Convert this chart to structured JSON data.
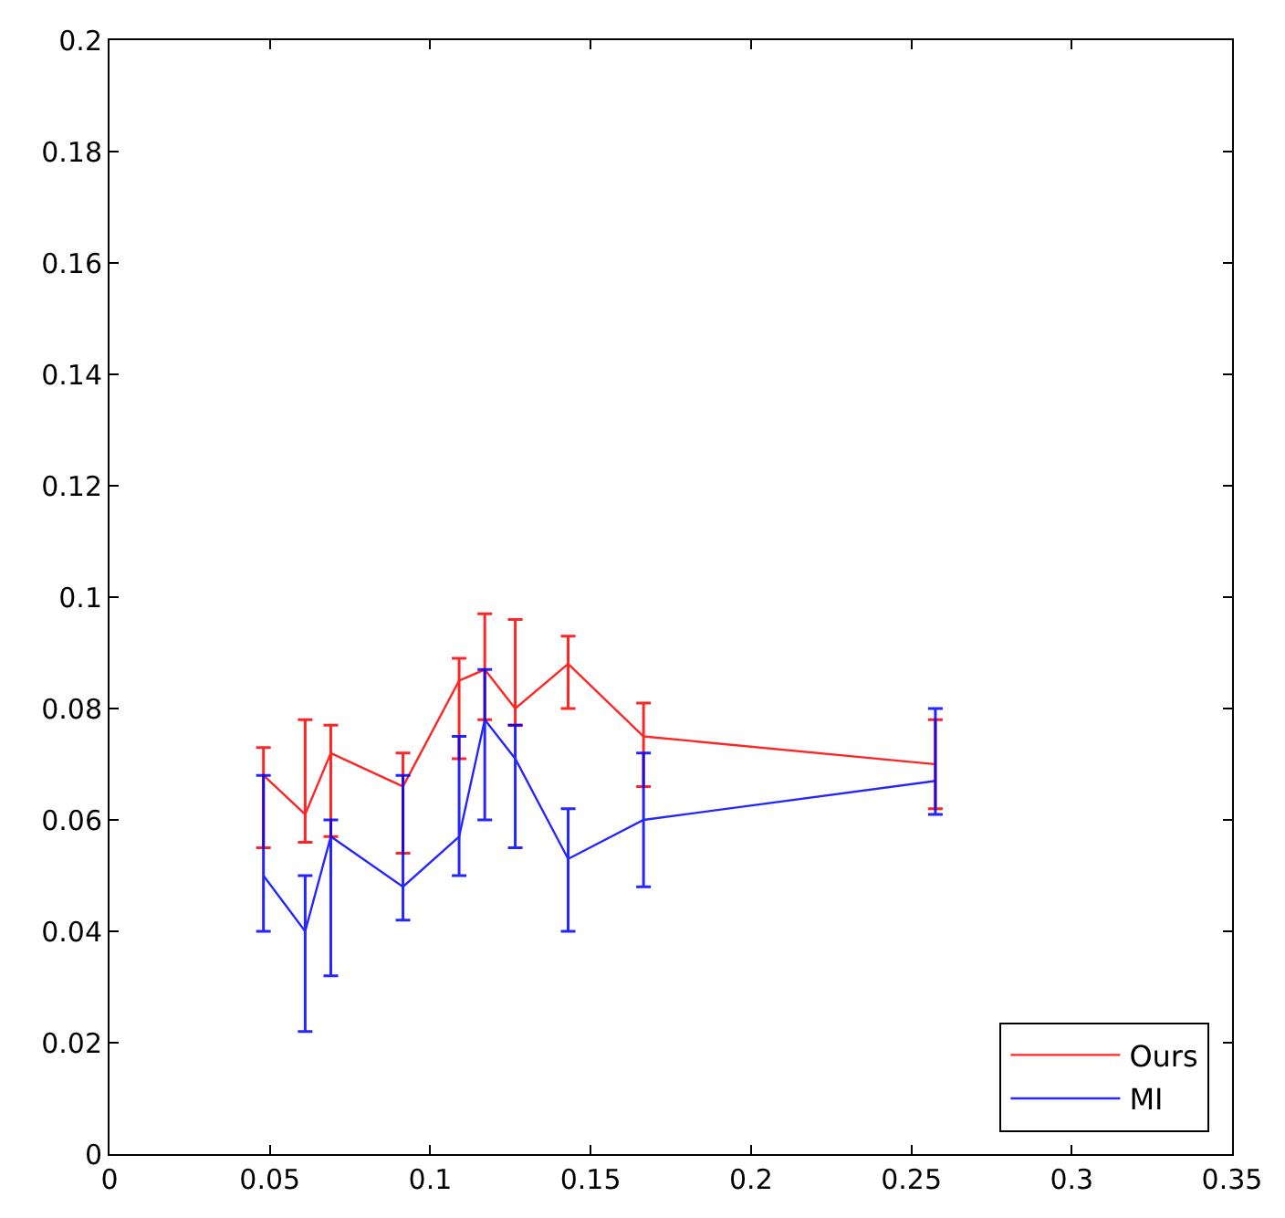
{
  "chart_data": {
    "type": "line",
    "x": [
      0.048,
      0.061,
      0.069,
      0.0915,
      0.109,
      0.117,
      0.1265,
      0.143,
      0.1665,
      0.2575
    ],
    "series": [
      {
        "name": "Ours",
        "color": "#ff0000",
        "values": [
          0.068,
          0.061,
          0.072,
          0.066,
          0.085,
          0.087,
          0.08,
          0.088,
          0.075,
          0.07
        ],
        "errors": [
          [
            0.055,
            0.073
          ],
          [
            0.056,
            0.078
          ],
          [
            0.057,
            0.077
          ],
          [
            0.054,
            0.072
          ],
          [
            0.071,
            0.089
          ],
          [
            0.078,
            0.097
          ],
          [
            0.077,
            0.096
          ],
          [
            0.08,
            0.093
          ],
          [
            0.066,
            0.081
          ],
          [
            0.062,
            0.078
          ]
        ]
      },
      {
        "name": "MI",
        "color": "#0000ff",
        "values": [
          0.05,
          0.04,
          0.057,
          0.048,
          0.057,
          0.078,
          0.071,
          0.053,
          0.06,
          0.067
        ],
        "errors": [
          [
            0.04,
            0.068
          ],
          [
            0.022,
            0.05
          ],
          [
            0.032,
            0.06
          ],
          [
            0.042,
            0.068
          ],
          [
            0.05,
            0.075
          ],
          [
            0.06,
            0.087
          ],
          [
            0.055,
            0.077
          ],
          [
            0.04,
            0.062
          ],
          [
            0.048,
            0.072
          ],
          [
            0.061,
            0.08
          ]
        ]
      }
    ],
    "xlim": [
      0,
      0.35
    ],
    "xticks": [
      0,
      0.05,
      0.1,
      0.15,
      0.2,
      0.25,
      0.3,
      0.35
    ],
    "ylim": [
      0,
      0.2
    ],
    "yticks": [
      0,
      0.02,
      0.04,
      0.06,
      0.08,
      0.1,
      0.12,
      0.14,
      0.16,
      0.18,
      0.2
    ],
    "legend": "bottom right",
    "marker": "none",
    "line_style": "solid"
  }
}
